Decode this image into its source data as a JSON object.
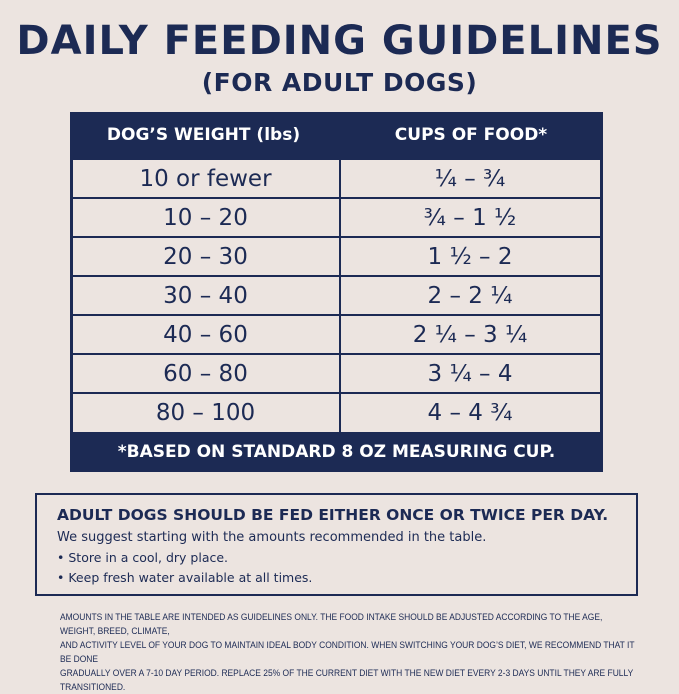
{
  "title": "DAILY FEEDING GUIDELINES",
  "subtitle": "(FOR ADULT DOGS)",
  "table": {
    "headers": [
      "DOG’S WEIGHT (lbs)",
      "CUPS OF FOOD*"
    ],
    "rows": [
      [
        "10 or fewer",
        "¼ – ¾"
      ],
      [
        "10 – 20",
        "¾ – 1 ½"
      ],
      [
        "20 – 30",
        "1 ½ – 2"
      ],
      [
        "30 – 40",
        "2 – 2 ¼"
      ],
      [
        "40 – 60",
        "2 ¼ – 3 ¼"
      ],
      [
        "60 – 80",
        "3 ¼ – 4"
      ],
      [
        "80 – 100",
        "4 – 4 ¾"
      ]
    ],
    "footnote": "*BASED ON STANDARD 8 OZ MEASURING CUP."
  },
  "notes": {
    "heading": "ADULT DOGS SHOULD BE FED EITHER ONCE OR TWICE PER DAY.",
    "suggestion": "We suggest starting with the amounts recommended in the table.",
    "bullets": [
      "Store in a cool, dry place.",
      "Keep fresh water available at all times."
    ]
  },
  "fine_print": [
    "AMOUNTS IN THE TABLE ARE INTENDED AS GUIDELINES ONLY. THE FOOD INTAKE SHOULD BE ADJUSTED ACCORDING TO THE AGE, WEIGHT, BREED, CLIMATE,",
    "AND ACTIVITY LEVEL OF YOUR DOG TO MAINTAIN IDEAL BODY CONDITION. WHEN SWITCHING YOUR DOG’S DIET, WE RECOMMEND THAT IT BE DONE",
    "GRADUALLY OVER A 7-10 DAY PERIOD. REPLACE 25% OF THE CURRENT DIET WITH THE NEW DIET EVERY 2-3 DAYS UNTIL THEY ARE FULLY TRANSITIONED."
  ],
  "colors": {
    "navy": "#1c2a54",
    "background": "#ece4e0"
  }
}
